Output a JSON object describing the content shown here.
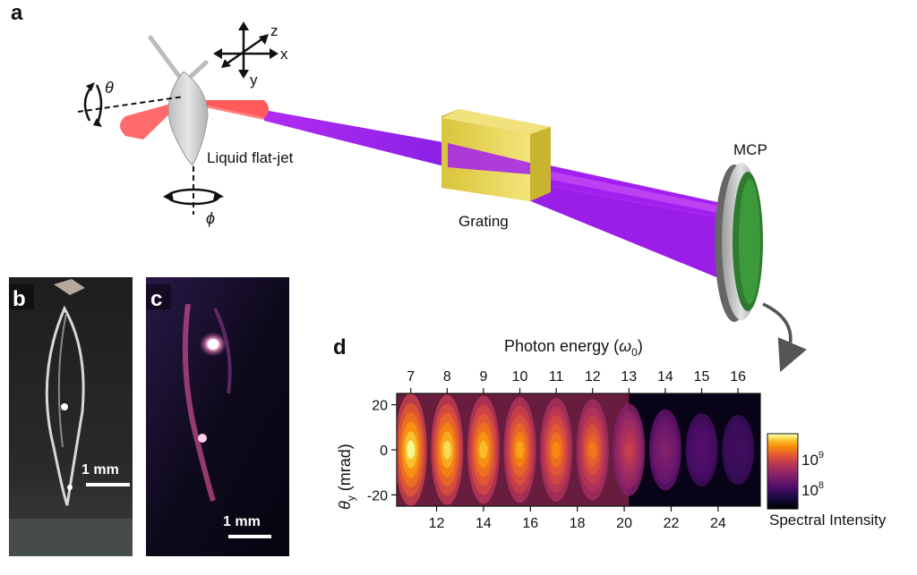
{
  "panels": {
    "a": "a",
    "b": "b",
    "c": "c",
    "d": "d"
  },
  "setup": {
    "axes": {
      "x": "x",
      "y": "y",
      "z": "z"
    },
    "theta_label": "θ",
    "phi_label": "ϕ",
    "jet_label": "Liquid flat-jet",
    "grating_label": "Grating",
    "mcp_label": "MCP"
  },
  "photos": {
    "b_scale": "1 mm",
    "c_scale": "1 mm"
  },
  "colors": {
    "drive_beam": "#ff5a5a",
    "xuv_beam": "#a020f0",
    "grating": "#e8d44a",
    "mcp_screen": "#2f8a2f"
  },
  "chart_data": {
    "type": "heatmap",
    "title": "",
    "top_axis_label_prefix": "Photon energy (",
    "top_axis_label_symbol": "ω",
    "top_axis_label_sub": "0",
    "top_axis_label_suffix": ")",
    "top_ticks": [
      "7",
      "8",
      "9",
      "10",
      "11",
      "12",
      "13",
      "14",
      "15",
      "16"
    ],
    "top_tick_energies_eV": [
      10.9,
      12.45,
      14.0,
      15.55,
      17.1,
      18.65,
      20.2,
      21.75,
      23.3,
      24.85
    ],
    "xlabel": "",
    "bottom_ticks": [
      "12",
      "14",
      "16",
      "18",
      "20",
      "22",
      "24"
    ],
    "bottom_tick_values": [
      12,
      14,
      16,
      18,
      20,
      22,
      24
    ],
    "xlim": [
      10.3,
      25.8
    ],
    "ylabel_symbol": "θ",
    "ylabel_sub": "y",
    "ylabel_suffix": " (mrad)",
    "y_ticks": [
      "20",
      "0",
      "-20"
    ],
    "y_tick_values": [
      20,
      0,
      -20
    ],
    "ylim": [
      -25,
      25
    ],
    "harmonics": [
      7,
      8,
      9,
      10,
      11,
      12,
      13,
      14,
      15,
      16
    ],
    "relative_intensity": [
      1.0,
      0.95,
      0.9,
      0.85,
      0.8,
      0.75,
      0.55,
      0.3,
      0.12,
      0.05
    ],
    "colorbar": {
      "label": "Spectral Intensity",
      "ticks": [
        "10",
        "10"
      ],
      "tick_exponents": [
        "9",
        "8"
      ],
      "scale": "log",
      "colormap": "inferno"
    }
  }
}
